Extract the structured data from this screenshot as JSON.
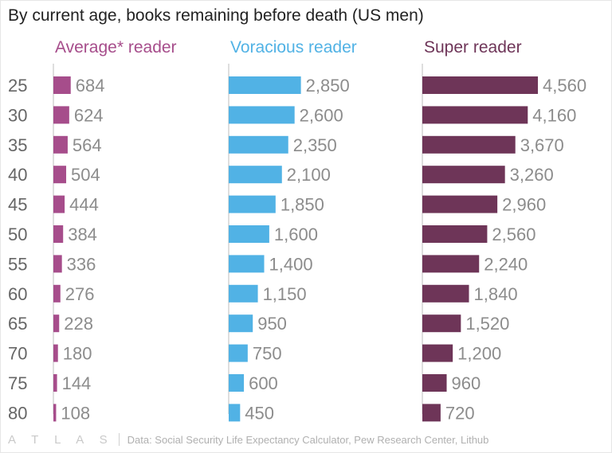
{
  "title": "By current age, books remaining before death (US men)",
  "footer": {
    "logo": "A T L A S",
    "source": "Data: Social Security Life Expectancy Calculator, Pew Research Center, Lithub"
  },
  "chart_data": {
    "type": "bar",
    "orientation": "horizontal",
    "title": "By current age, books remaining before death (US men)",
    "categories": [
      "25",
      "30",
      "35",
      "40",
      "45",
      "50",
      "55",
      "60",
      "65",
      "70",
      "75",
      "80"
    ],
    "series": [
      {
        "name": "Average* reader",
        "color": "#a64d8b",
        "values": [
          684,
          624,
          564,
          504,
          444,
          384,
          336,
          276,
          228,
          180,
          144,
          108
        ],
        "labels": [
          "684",
          "624",
          "564",
          "504",
          "444",
          "384",
          "336",
          "276",
          "228",
          "180",
          "144",
          "108"
        ]
      },
      {
        "name": "Voracious reader",
        "color": "#51b2e5",
        "values": [
          2850,
          2600,
          2350,
          2100,
          1850,
          1600,
          1400,
          1150,
          950,
          750,
          600,
          450
        ],
        "labels": [
          "2,850",
          "2,600",
          "2,350",
          "2,100",
          "1,850",
          "1,600",
          "1,400",
          "1,150",
          "950",
          "750",
          "600",
          "450"
        ]
      },
      {
        "name": "Super reader",
        "color": "#6e3558",
        "values": [
          4560,
          4160,
          3670,
          3260,
          2960,
          2560,
          2240,
          1840,
          1520,
          1200,
          960,
          720
        ],
        "labels": [
          "4,560",
          "4,160",
          "3,670",
          "3,260",
          "2,960",
          "2,560",
          "2,240",
          "1,840",
          "1,520",
          "1,200",
          "960",
          "720"
        ]
      }
    ],
    "xlabel": "",
    "ylabel": "",
    "colors": {
      "label_text": "#8c8c8c",
      "category_text": "#666666",
      "axis_line": "#bdbdbd"
    }
  }
}
